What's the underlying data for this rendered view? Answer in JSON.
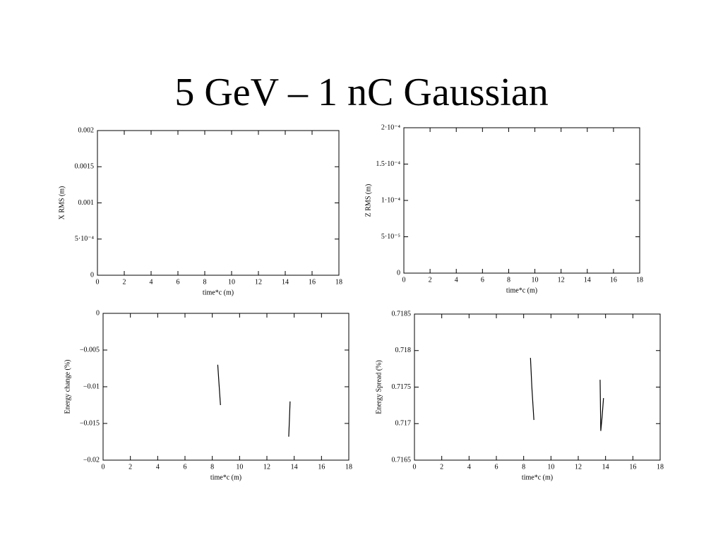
{
  "title": "5 GeV – 1 nC Gaussian",
  "chart_data": [
    {
      "type": "line",
      "xlabel": "time*c (m)",
      "ylabel": "X RMS (m)",
      "x": [],
      "values": [],
      "xlim": [
        0,
        18
      ],
      "xticks": [
        0,
        2,
        4,
        6,
        8,
        10,
        12,
        14,
        16,
        18
      ],
      "ylim": [
        0,
        0.002
      ],
      "yticks": [
        0,
        {
          "value": 0.0005,
          "label": "5·10⁻⁴"
        },
        0.001,
        0.0015,
        0.002
      ]
    },
    {
      "type": "line",
      "xlabel": "time*c (m)",
      "ylabel": "Z RMS (m)",
      "x": [],
      "values": [],
      "xlim": [
        0,
        18
      ],
      "xticks": [
        0,
        2,
        4,
        6,
        8,
        10,
        12,
        14,
        16,
        18
      ],
      "ylim": [
        0,
        0.0002
      ],
      "yticks": [
        0,
        {
          "value": 5e-05,
          "label": "5·10⁻⁵"
        },
        {
          "value": 0.0001,
          "label": "1·10⁻⁴"
        },
        {
          "value": 0.00015,
          "label": "1.5·10⁻⁴"
        },
        {
          "value": 0.0002,
          "label": "2·10⁻⁴"
        }
      ]
    },
    {
      "type": "line",
      "xlabel": "time*c (m)",
      "ylabel": "Energy change (%)",
      "color": "#000000",
      "x": [
        8.4,
        8.5,
        8.6,
        8.6,
        13.6,
        13.65,
        13.7
      ],
      "values": [
        -0.007,
        -0.0098,
        -0.0125,
        null,
        -0.0168,
        -0.0145,
        -0.012
      ],
      "xlim": [
        0,
        18
      ],
      "xticks": [
        0,
        2,
        4,
        6,
        8,
        10,
        12,
        14,
        16,
        18
      ],
      "ylim": [
        -0.02,
        0
      ],
      "yticks": [
        {
          "value": -0.02,
          "label": "−0.02"
        },
        {
          "value": -0.015,
          "label": "−0.015"
        },
        {
          "value": -0.01,
          "label": "−0.01"
        },
        {
          "value": -0.005,
          "label": "−0.005"
        },
        0
      ]
    },
    {
      "type": "line",
      "xlabel": "time*c (m)",
      "ylabel": "Energy Spread (%)",
      "color": "#000000",
      "x": [
        8.5,
        8.6,
        8.75,
        8.75,
        13.6,
        13.65,
        13.75,
        13.85
      ],
      "values": [
        0.7179,
        0.7175,
        0.71705,
        null,
        0.7176,
        0.7169,
        0.7171,
        0.71735
      ],
      "xlim": [
        0,
        18
      ],
      "xticks": [
        0,
        2,
        4,
        6,
        8,
        10,
        12,
        14,
        16,
        18
      ],
      "ylim": [
        0.7165,
        0.7185
      ],
      "yticks": [
        0.7165,
        0.717,
        0.7175,
        0.718,
        0.7185
      ]
    }
  ]
}
